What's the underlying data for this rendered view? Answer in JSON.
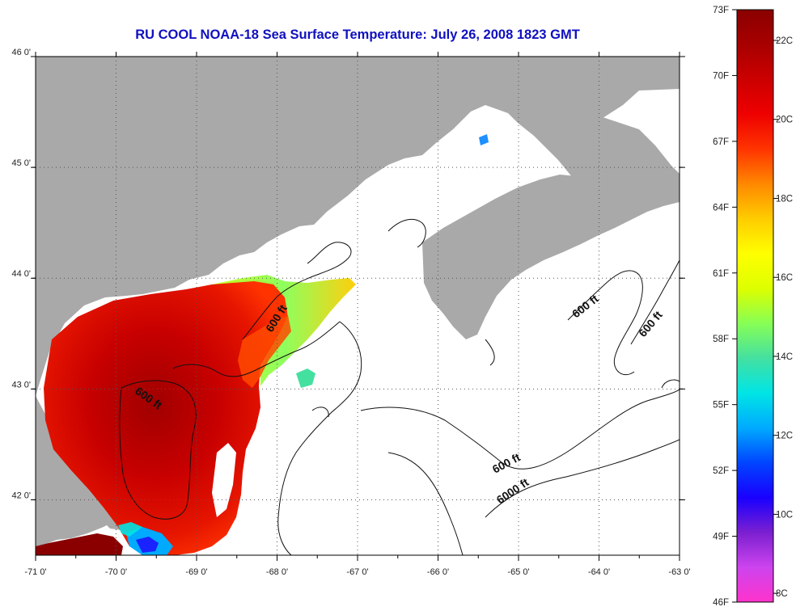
{
  "map": {
    "title": "RU COOL  NOAA-18  Sea Surface Temperature:  July 26, 2008 1823 GMT",
    "lon_labels": [
      "-71 0'",
      "-70 0'",
      "-69 0'",
      "-68 0'",
      "-67 0'",
      "-66 0'",
      "-65 0'",
      "-64 0'",
      "-63 0'"
    ],
    "lat_labels": [
      "46 0'",
      "45 0'",
      "44 0'",
      "43 0'",
      "42 0'"
    ],
    "lon_range": [
      -71,
      -63
    ],
    "lat_range": [
      41.5,
      46
    ],
    "contour_labels": [
      "600 ft",
      "600 ft",
      "600 ft",
      "600 ft",
      "600 ft",
      "6000 ft"
    ],
    "colors": {
      "land": "#a9a9a9",
      "title": "#1010c0",
      "frame": "#000000"
    }
  },
  "colorbar": {
    "fahrenheit_labels": [
      "73F",
      "70F",
      "67F",
      "64F",
      "61F",
      "58F",
      "55F",
      "52F",
      "49F",
      "46F"
    ],
    "celsius_labels": [
      "22C",
      "20C",
      "18C",
      "16C",
      "14C",
      "12C",
      "10C",
      "8C"
    ],
    "range_f": [
      46,
      73
    ],
    "gradient": [
      "#ff33cc",
      "#cc44ee",
      "#7a1fd0",
      "#1a00ff",
      "#0044ff",
      "#00aaff",
      "#00e5e5",
      "#44e0a0",
      "#88ff55",
      "#ddff00",
      "#ffff00",
      "#ffcc00",
      "#ff8800",
      "#ff3300",
      "#ee0000",
      "#cc0000",
      "#a80000",
      "#8a0000"
    ]
  }
}
